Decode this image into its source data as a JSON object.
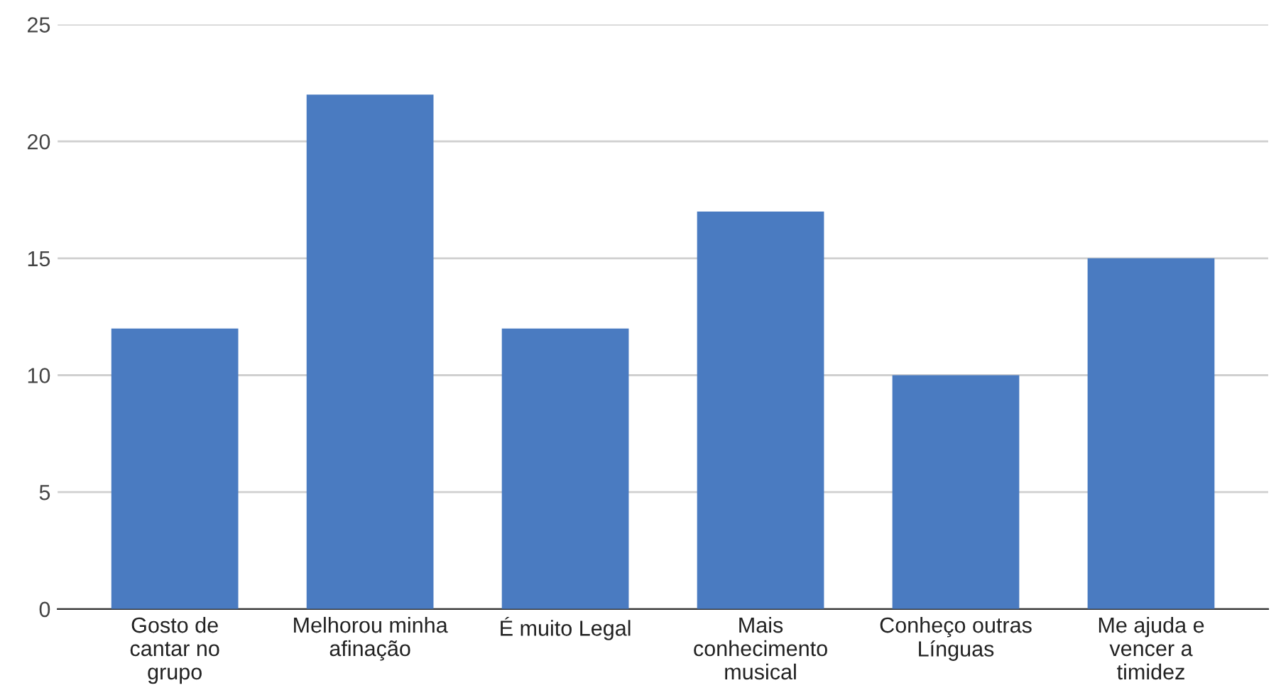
{
  "chart_data": {
    "type": "bar",
    "categories": [
      "Gosto de cantar no grupo",
      "Melhorou minha afinação",
      "É muito Legal",
      "Mais conhecimento musical",
      "Conheço outras Línguas",
      "Me ajuda e vencer a timidez"
    ],
    "values": [
      12,
      22,
      12,
      17,
      10,
      15
    ],
    "color": "#4a7bc1",
    "ylim": [
      0,
      25
    ],
    "yticks": [
      0,
      5,
      10,
      15,
      20,
      25
    ],
    "grid": "y",
    "legend": false
  }
}
